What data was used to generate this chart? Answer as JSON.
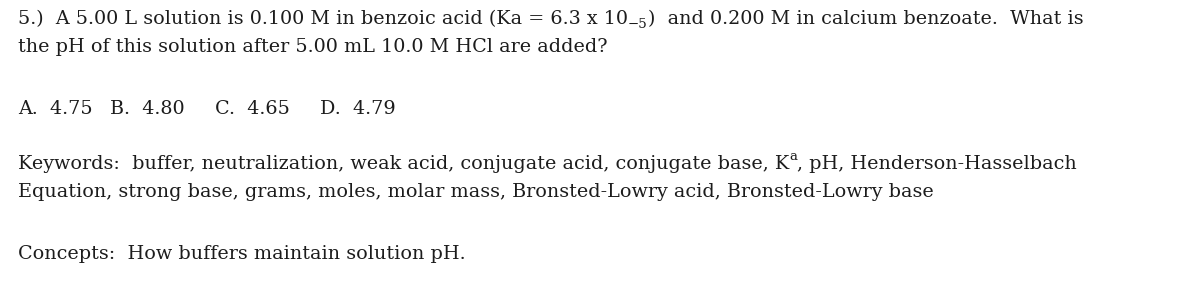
{
  "background_color": "#ffffff",
  "text_color": "#1c1c1c",
  "figsize": [
    12.0,
    2.9
  ],
  "dpi": 100,
  "line1a": "5.)  A 5.00 L solution is 0.100 M in benzoic acid (Ka = 6.3 x 10",
  "line1_exp": "−5",
  "line1b": ")  and 0.200 M in calcium benzoate.  What is",
  "line2": "the pH of this solution after 5.00 mL 10.0 M HCl are added?",
  "answers": [
    "A.  4.75",
    "B.  4.80",
    "C.  4.65",
    "D.  4.79"
  ],
  "keywords_line1a": "Keywords:  buffer, neutralization, weak acid, conjugate acid, conjugate base, K",
  "keywords_line1_sub": "a",
  "keywords_line1b": ", pH, Henderson-Hasselbach",
  "keywords_line2": "Equation, strong base, grams, moles, molar mass, Bronsted-Lowry acid, Bronsted-Lowry base",
  "concepts": "Concepts:  How buffers maintain solution pH.",
  "font_size_main": 13.8,
  "font_family": "DejaVu Serif"
}
